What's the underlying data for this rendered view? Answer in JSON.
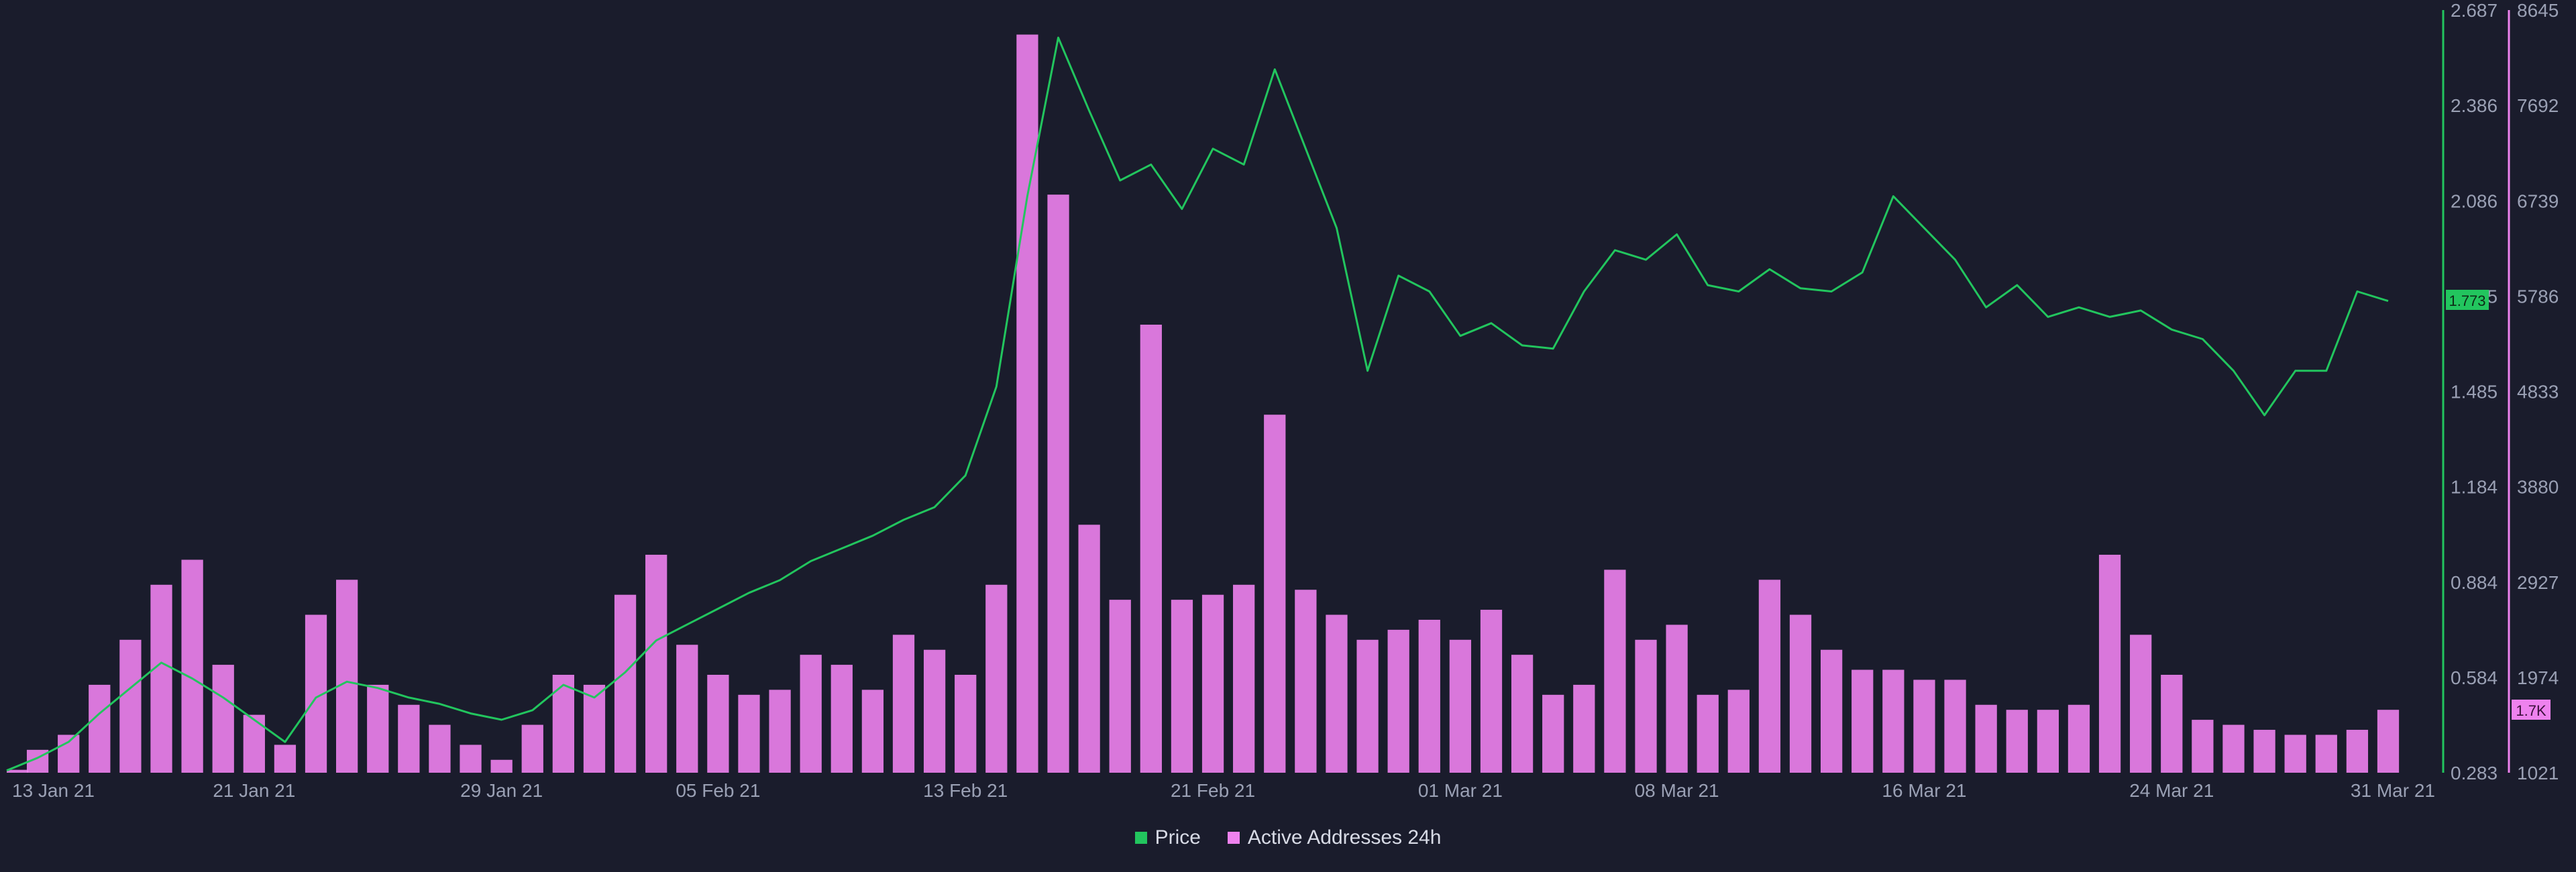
{
  "chart_data": {
    "type": "bar+line",
    "x_ticks": [
      "13 Jan 21",
      "21 Jan 21",
      "29 Jan 21",
      "05 Feb 21",
      "13 Feb 21",
      "21 Feb 21",
      "01 Mar 21",
      "08 Mar 21",
      "16 Mar 21",
      "24 Mar 21",
      "31 Mar 21"
    ],
    "y_left_ticks": [
      "2.687",
      "2.386",
      "2.086",
      "1.785",
      "1.485",
      "1.184",
      "0.884",
      "0.584",
      "0.283"
    ],
    "y_right_ticks": [
      "8645",
      "7692",
      "6739",
      "5786",
      "4833",
      "3880",
      "2927",
      "1974",
      "1021"
    ],
    "price_ylim": [
      0.283,
      2.687
    ],
    "addresses_ylim": [
      1021,
      8645
    ],
    "price_badge": "1.773",
    "addresses_badge": "1.7K",
    "series": [
      {
        "name": "Price",
        "color": "#22c55e",
        "x_days": [
          0,
          1,
          2,
          3,
          4,
          5,
          6,
          7,
          8,
          9,
          10,
          11,
          12,
          13,
          14,
          15,
          16,
          17,
          18,
          19,
          20,
          21,
          22,
          23,
          24,
          25,
          26,
          27,
          28,
          29,
          30,
          31,
          32,
          33,
          34,
          35,
          36,
          37,
          38,
          39,
          40,
          41,
          42,
          43,
          44,
          45,
          46,
          47,
          48,
          49,
          50,
          51,
          52,
          53,
          54,
          55,
          56,
          57,
          58,
          59,
          60,
          61,
          62,
          63,
          64,
          65,
          66,
          67,
          68,
          69,
          70,
          71,
          72,
          73,
          74,
          75,
          76,
          77
        ],
        "values": [
          0.29,
          0.33,
          0.38,
          0.47,
          0.55,
          0.63,
          0.58,
          0.52,
          0.45,
          0.38,
          0.52,
          0.57,
          0.55,
          0.52,
          0.5,
          0.47,
          0.45,
          0.48,
          0.56,
          0.52,
          0.6,
          0.7,
          0.75,
          0.8,
          0.85,
          0.89,
          0.95,
          0.99,
          1.03,
          1.08,
          1.12,
          1.22,
          1.5,
          2.1,
          2.6,
          2.37,
          2.15,
          2.2,
          2.06,
          2.25,
          2.2,
          2.5,
          2.25,
          2.0,
          1.55,
          1.85,
          1.8,
          1.66,
          1.7,
          1.63,
          1.62,
          1.8,
          1.93,
          1.9,
          1.98,
          1.82,
          1.8,
          1.87,
          1.81,
          1.8,
          1.86,
          2.1,
          2.0,
          1.9,
          1.75,
          1.82,
          1.72,
          1.75,
          1.72,
          1.74,
          1.68,
          1.65,
          1.55,
          1.41,
          1.55,
          1.55,
          1.8,
          1.77
        ]
      },
      {
        "name": "Active Addresses 24h",
        "color": "#ee82ee",
        "x_days": [
          0,
          1,
          2,
          3,
          4,
          5,
          6,
          7,
          8,
          9,
          10,
          11,
          12,
          13,
          14,
          15,
          16,
          17,
          18,
          19,
          20,
          21,
          22,
          23,
          24,
          25,
          26,
          27,
          28,
          29,
          30,
          31,
          32,
          33,
          34,
          35,
          36,
          37,
          38,
          39,
          40,
          41,
          42,
          43,
          44,
          45,
          46,
          47,
          48,
          49,
          50,
          51,
          52,
          53,
          54,
          55,
          56,
          57,
          58,
          59,
          60,
          61,
          62,
          63,
          64,
          65,
          66,
          67,
          68,
          69,
          70,
          71,
          72,
          73,
          74,
          75,
          76,
          77
        ],
        "values": [
          1050,
          1250,
          1400,
          1900,
          2350,
          2900,
          3150,
          2100,
          1600,
          1300,
          2600,
          2950,
          1900,
          1700,
          1500,
          1300,
          1150,
          1500,
          2000,
          1900,
          2800,
          3200,
          2300,
          2000,
          1800,
          1850,
          2200,
          2100,
          1850,
          2400,
          2250,
          2000,
          2900,
          8400,
          6800,
          3500,
          2750,
          5500,
          2750,
          2800,
          2900,
          4600,
          2850,
          2600,
          2350,
          2450,
          2550,
          2350,
          2650,
          2200,
          1800,
          1900,
          3050,
          2350,
          2500,
          1800,
          1850,
          2950,
          2600,
          2250,
          2050,
          2050,
          1950,
          1950,
          1700,
          1650,
          1650,
          1700,
          3200,
          2400,
          2000,
          1550,
          1500,
          1450,
          1400,
          1400,
          1450,
          1650
        ]
      }
    ]
  },
  "legend": {
    "price_label": "Price",
    "addresses_label": "Active Addresses 24h"
  }
}
